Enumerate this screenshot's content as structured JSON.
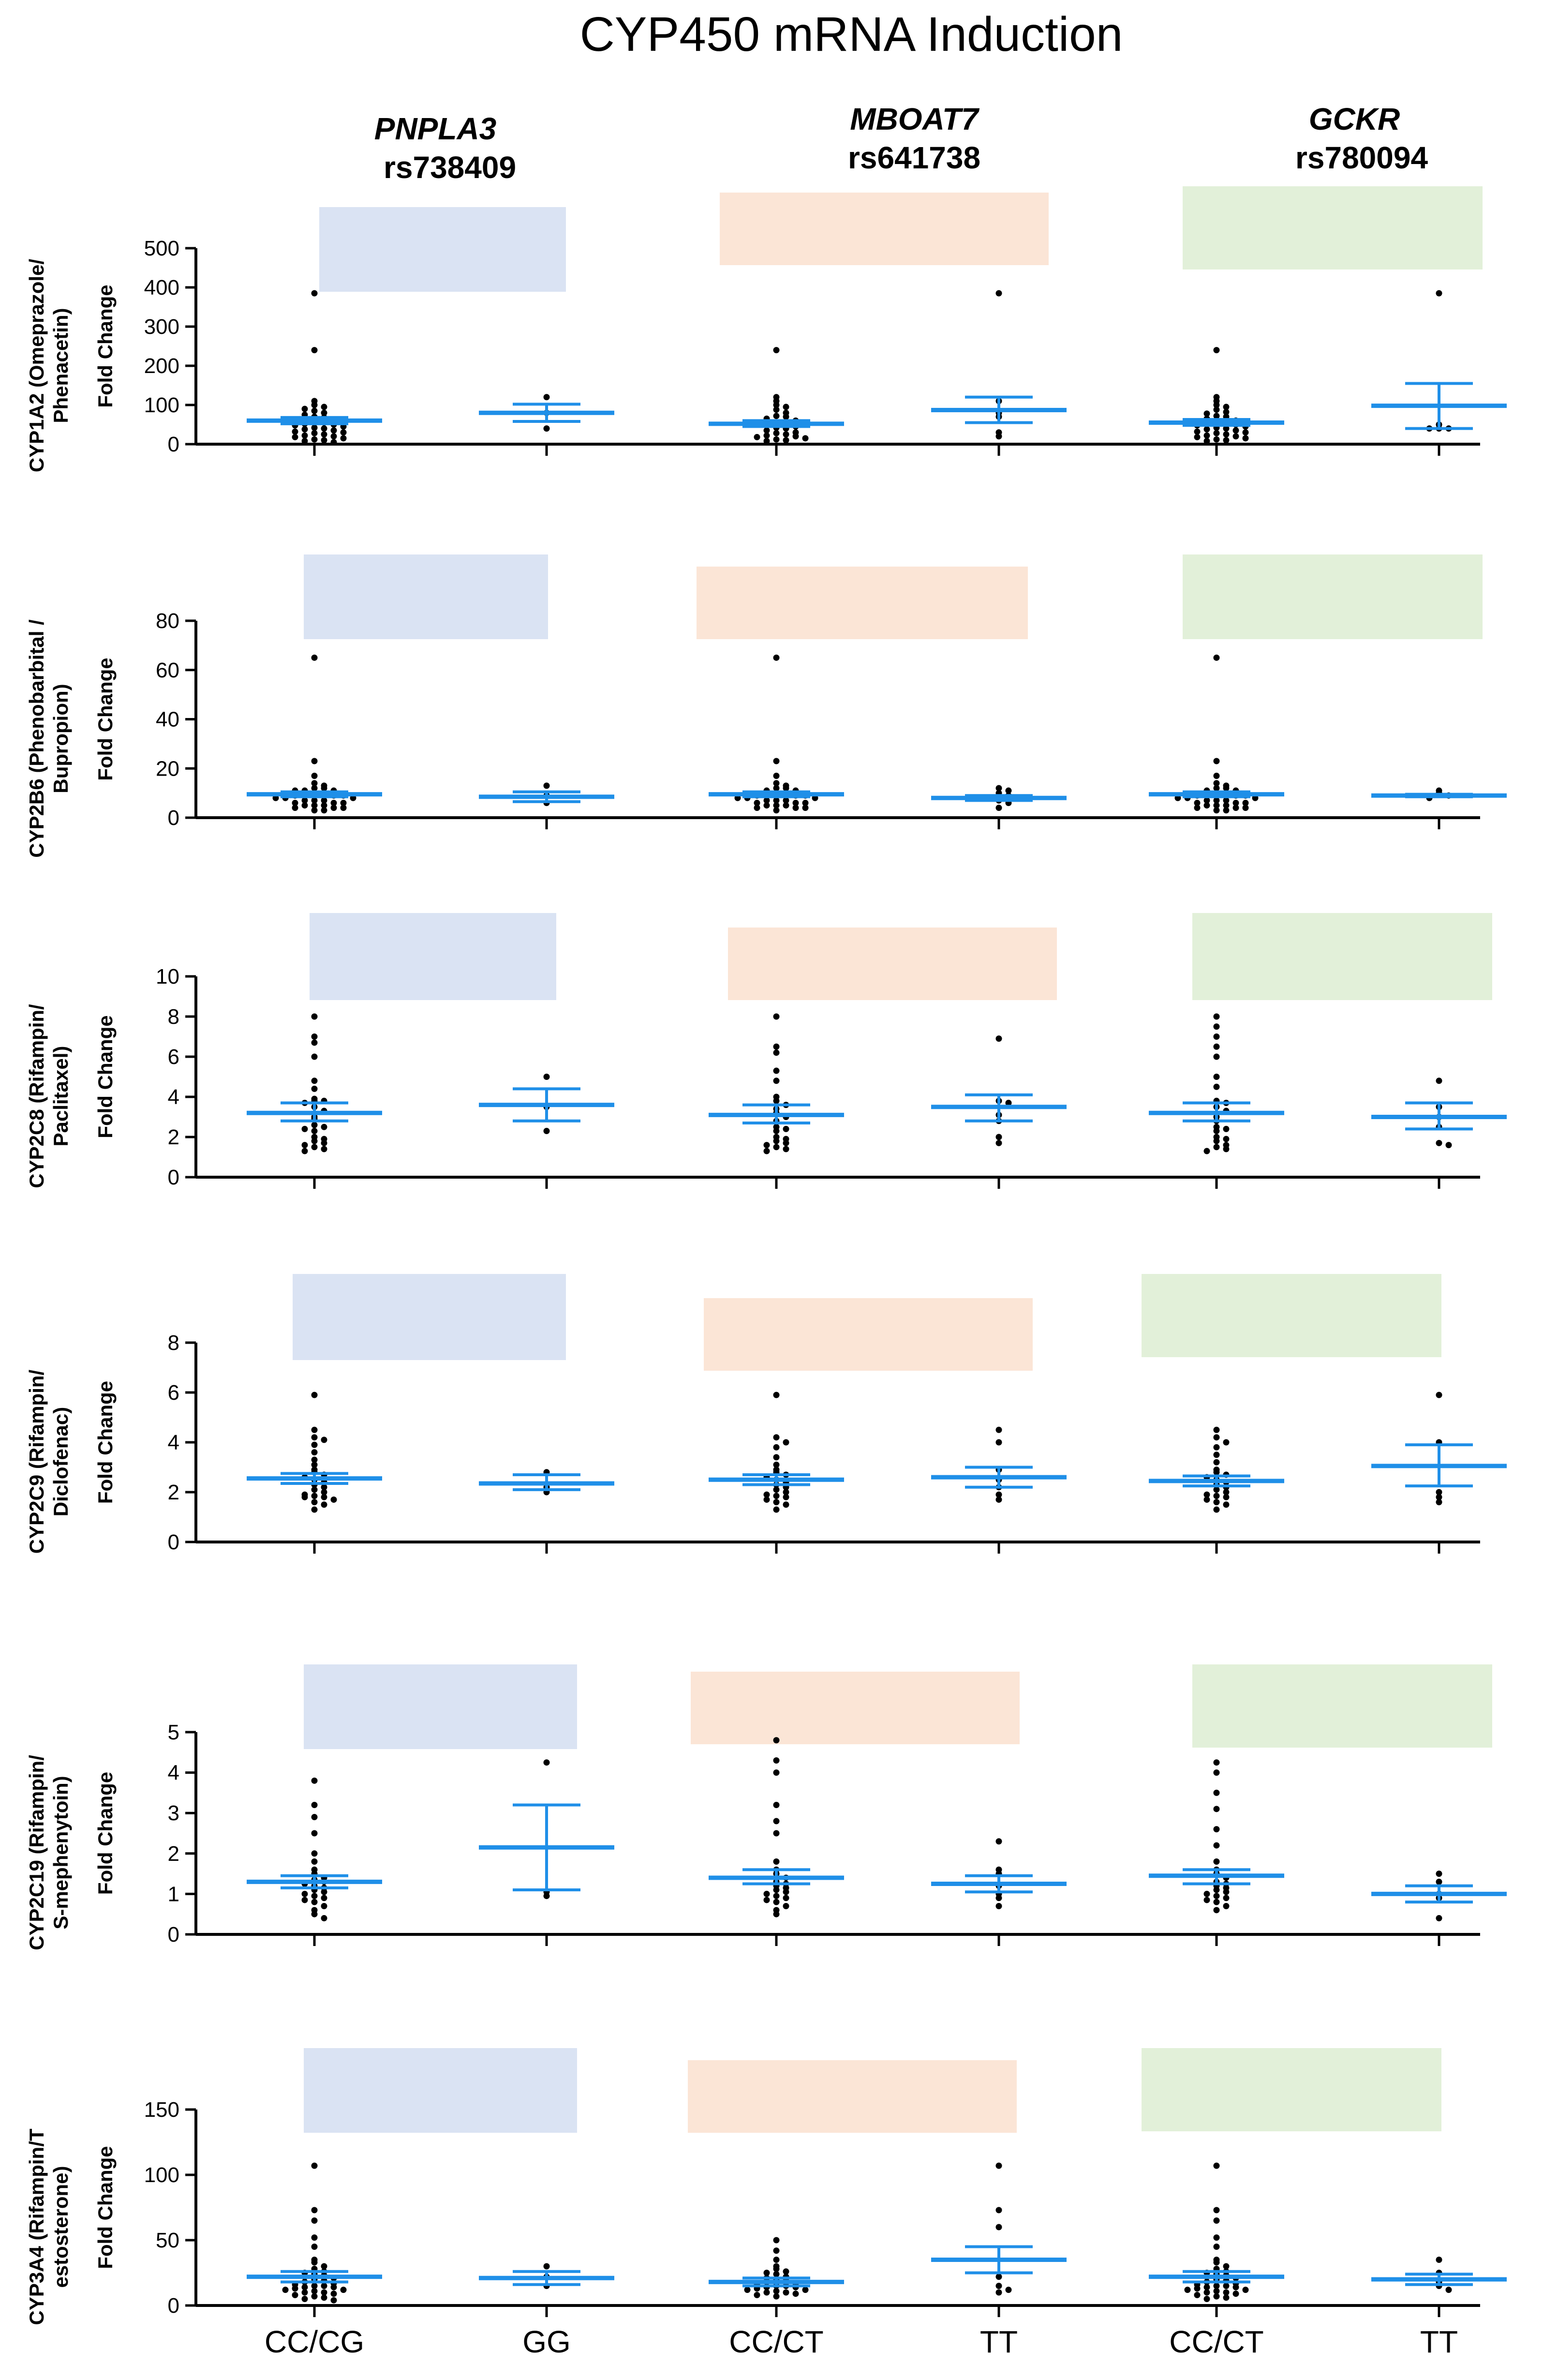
{
  "title": "CYP450 mRNA Induction",
  "genes": [
    {
      "gene": "PNPLA3",
      "snp": "rs738409",
      "color": "#dae3f3"
    },
    {
      "gene": "MBOAT7",
      "snp": "rs641738",
      "color": "#fbe5d6"
    },
    {
      "gene": "GCKR",
      "snp": "rs780094",
      "color": "#e2f0d9"
    }
  ],
  "x_categories": [
    "CC/CG",
    "GG",
    "CC/CT",
    "TT",
    "CC/CT",
    "TT"
  ],
  "ylabel_common": "Fold Change",
  "point_color": "#000000",
  "mean_color": "#1f8fe8",
  "chart_data": [
    {
      "type": "scatter",
      "ylabel_line1": "CYP1A2 (Omeprazole/",
      "ylabel_line2": "Phenacetin)",
      "ylim": [
        0,
        500
      ],
      "yticks": [
        0,
        100,
        200,
        300,
        400,
        500
      ],
      "groups": [
        {
          "category": "CC/CG",
          "mean": 60,
          "sem_low": 52,
          "sem_high": 68,
          "points": [
            385,
            240,
            110,
            100,
            95,
            90,
            85,
            80,
            75,
            70,
            68,
            65,
            60,
            58,
            55,
            52,
            50,
            48,
            45,
            42,
            40,
            38,
            35,
            32,
            30,
            28,
            25,
            22,
            20,
            18,
            15,
            12,
            10,
            8,
            5
          ]
        },
        {
          "category": "GG",
          "mean": 80,
          "sem_low": 58,
          "sem_high": 102,
          "points": [
            120,
            80,
            40
          ]
        },
        {
          "category": "CC/CT",
          "mean": 52,
          "sem_low": 45,
          "sem_high": 60,
          "points": [
            240,
            120,
            110,
            100,
            95,
            88,
            80,
            72,
            70,
            65,
            60,
            55,
            50,
            48,
            45,
            42,
            40,
            35,
            30,
            28,
            25,
            22,
            20,
            18,
            15,
            12,
            10,
            8
          ]
        },
        {
          "category": "TT",
          "mean": 87,
          "sem_low": 55,
          "sem_high": 120,
          "points": [
            385,
            110,
            80,
            70,
            30,
            20
          ]
        },
        {
          "category": "CC/CT",
          "mean": 55,
          "sem_low": 48,
          "sem_high": 63,
          "points": [
            240,
            120,
            110,
            100,
            95,
            88,
            82,
            78,
            72,
            70,
            65,
            60,
            58,
            55,
            52,
            50,
            48,
            45,
            42,
            40,
            38,
            35,
            32,
            30,
            28,
            25,
            22,
            20,
            18,
            15,
            12,
            10,
            8
          ]
        },
        {
          "category": "TT",
          "mean": 98,
          "sem_low": 40,
          "sem_high": 155,
          "points": [
            385,
            50,
            40,
            40,
            40
          ]
        }
      ]
    },
    {
      "type": "scatter",
      "ylabel_line1": "CYP2B6 (Phenobarbital /",
      "ylabel_line2": "Bupropion)",
      "ylim": [
        0,
        80
      ],
      "yticks": [
        0,
        20,
        40,
        60,
        80
      ],
      "groups": [
        {
          "category": "CC/CG",
          "mean": 9.5,
          "sem_low": 8.5,
          "sem_high": 10.5,
          "points": [
            65,
            23,
            17,
            14,
            13,
            12,
            12,
            11,
            11,
            11,
            10,
            10,
            10,
            9,
            9,
            9,
            8,
            8,
            8,
            7,
            7,
            7,
            6,
            6,
            6,
            5,
            5,
            5,
            4,
            4,
            4,
            3,
            3
          ]
        },
        {
          "category": "GG",
          "mean": 8.5,
          "sem_low": 6.5,
          "sem_high": 10.5,
          "points": [
            13,
            9,
            6
          ]
        },
        {
          "category": "CC/CT",
          "mean": 9.5,
          "sem_low": 8.5,
          "sem_high": 10.5,
          "points": [
            65,
            23,
            17,
            14,
            13,
            12,
            12,
            11,
            11,
            10,
            10,
            10,
            9,
            9,
            9,
            8,
            8,
            8,
            7,
            7,
            7,
            6,
            6,
            6,
            5,
            5,
            5,
            4,
            4,
            4,
            3
          ]
        },
        {
          "category": "TT",
          "mean": 8,
          "sem_low": 7,
          "sem_high": 9,
          "points": [
            12,
            11,
            10,
            9,
            8,
            7,
            6,
            4
          ]
        },
        {
          "category": "CC/CT",
          "mean": 9.5,
          "sem_low": 8.5,
          "sem_high": 10.5,
          "points": [
            65,
            23,
            17,
            14,
            13,
            12,
            12,
            11,
            11,
            10,
            10,
            10,
            9,
            9,
            9,
            8,
            8,
            8,
            7,
            7,
            7,
            6,
            6,
            6,
            5,
            5,
            5,
            4,
            4,
            4,
            3,
            3
          ]
        },
        {
          "category": "TT",
          "mean": 9,
          "sem_low": 8.5,
          "sem_high": 9.5,
          "points": [
            11,
            10,
            9,
            8
          ]
        }
      ]
    },
    {
      "type": "scatter",
      "ylabel_line1": "CYP2C8 (Rifampin/",
      "ylabel_line2": "Paclitaxel)",
      "ylim": [
        0,
        10
      ],
      "yticks": [
        0,
        2,
        4,
        6,
        8,
        10
      ],
      "groups": [
        {
          "category": "CC/CG",
          "mean": 3.2,
          "sem_low": 2.8,
          "sem_high": 3.7,
          "points": [
            8.0,
            7.0,
            6.7,
            6.0,
            4.8,
            4.4,
            3.9,
            3.8,
            3.8,
            3.7,
            3.5,
            3.3,
            3.0,
            2.9,
            2.6,
            2.5,
            2.4,
            2.3,
            2.0,
            1.9,
            1.8,
            1.7,
            1.6,
            1.5,
            1.4,
            1.3
          ]
        },
        {
          "category": "GG",
          "mean": 3.6,
          "sem_low": 2.8,
          "sem_high": 4.4,
          "points": [
            5.0,
            3.5,
            2.3
          ]
        },
        {
          "category": "CC/CT",
          "mean": 3.1,
          "sem_low": 2.7,
          "sem_high": 3.6,
          "points": [
            8.0,
            6.5,
            6.2,
            5.3,
            4.8,
            4.0,
            3.8,
            3.6,
            3.4,
            3.2,
            3.0,
            2.8,
            2.5,
            2.4,
            2.3,
            2.0,
            1.9,
            1.8,
            1.7,
            1.6,
            1.5,
            1.4,
            1.3
          ]
        },
        {
          "category": "TT",
          "mean": 3.5,
          "sem_low": 2.8,
          "sem_high": 4.1,
          "points": [
            6.9,
            3.8,
            3.7,
            3.1,
            2.8,
            2.0,
            1.7
          ]
        },
        {
          "category": "CC/CT",
          "mean": 3.2,
          "sem_low": 2.8,
          "sem_high": 3.7,
          "points": [
            8.0,
            7.5,
            7.0,
            6.5,
            6.0,
            5.0,
            4.5,
            3.8,
            3.7,
            3.5,
            3.3,
            3.0,
            2.8,
            2.5,
            2.4,
            2.3,
            2.0,
            1.9,
            1.8,
            1.6,
            1.5,
            1.4,
            1.3
          ]
        },
        {
          "category": "TT",
          "mean": 3.0,
          "sem_low": 2.4,
          "sem_high": 3.7,
          "points": [
            4.8,
            3.5,
            3.0,
            2.5,
            1.7,
            1.6
          ]
        }
      ]
    },
    {
      "type": "scatter",
      "ylabel_line1": "CYP2C9 (Rifampin/",
      "ylabel_line2": "Diclofenac)",
      "ylim": [
        0,
        8
      ],
      "yticks": [
        0,
        2,
        4,
        6,
        8
      ],
      "groups": [
        {
          "category": "CC/CG",
          "mean": 2.55,
          "sem_low": 2.35,
          "sem_high": 2.75,
          "points": [
            5.9,
            4.5,
            4.2,
            4.1,
            3.9,
            3.6,
            3.3,
            3.1,
            2.9,
            2.8,
            2.7,
            2.6,
            2.5,
            2.4,
            2.3,
            2.2,
            2.1,
            2.0,
            1.9,
            1.85,
            1.8,
            1.8,
            1.7,
            1.6,
            1.5,
            1.3
          ]
        },
        {
          "category": "GG",
          "mean": 2.35,
          "sem_low": 2.1,
          "sem_high": 2.7,
          "points": [
            2.8,
            2.2,
            2.0
          ]
        },
        {
          "category": "CC/CT",
          "mean": 2.5,
          "sem_low": 2.3,
          "sem_high": 2.7,
          "points": [
            5.9,
            4.2,
            4.0,
            3.8,
            3.4,
            3.1,
            2.9,
            2.8,
            2.7,
            2.6,
            2.5,
            2.4,
            2.3,
            2.2,
            2.1,
            2.0,
            1.9,
            1.85,
            1.8,
            1.7,
            1.6,
            1.5,
            1.3
          ]
        },
        {
          "category": "TT",
          "mean": 2.6,
          "sem_low": 2.2,
          "sem_high": 3.0,
          "points": [
            4.5,
            4.0,
            2.9,
            2.5,
            2.2,
            1.9,
            1.7
          ]
        },
        {
          "category": "CC/CT",
          "mean": 2.45,
          "sem_low": 2.25,
          "sem_high": 2.65,
          "points": [
            4.5,
            4.2,
            4.0,
            3.8,
            3.5,
            3.2,
            2.9,
            2.8,
            2.7,
            2.6,
            2.5,
            2.4,
            2.3,
            2.2,
            2.1,
            2.0,
            1.9,
            1.85,
            1.8,
            1.7,
            1.6,
            1.5,
            1.3
          ]
        },
        {
          "category": "TT",
          "mean": 3.05,
          "sem_low": 2.25,
          "sem_high": 3.9,
          "points": [
            5.9,
            4.0,
            2.0,
            1.8,
            1.6
          ]
        }
      ]
    },
    {
      "type": "scatter",
      "ylabel_line1": "CYP2C19 (Rifampin/",
      "ylabel_line2": "S-mephenytoin)",
      "ylim": [
        0,
        5
      ],
      "yticks": [
        0,
        1,
        2,
        3,
        4,
        5
      ],
      "groups": [
        {
          "category": "CC/CG",
          "mean": 1.3,
          "sem_low": 1.15,
          "sem_high": 1.45,
          "points": [
            3.8,
            3.2,
            2.9,
            2.5,
            2.0,
            1.8,
            1.6,
            1.5,
            1.4,
            1.35,
            1.3,
            1.25,
            1.2,
            1.15,
            1.1,
            1.05,
            1.0,
            0.95,
            0.9,
            0.85,
            0.8,
            0.7,
            0.6,
            0.5,
            0.4
          ]
        },
        {
          "category": "GG",
          "mean": 2.15,
          "sem_low": 1.1,
          "sem_high": 3.2,
          "points": [
            4.25,
            1.05,
            0.95
          ]
        },
        {
          "category": "CC/CT",
          "mean": 1.4,
          "sem_low": 1.25,
          "sem_high": 1.6,
          "points": [
            4.8,
            4.3,
            4.0,
            3.2,
            2.8,
            2.5,
            1.8,
            1.6,
            1.5,
            1.4,
            1.3,
            1.25,
            1.2,
            1.15,
            1.1,
            1.05,
            1.0,
            0.95,
            0.9,
            0.85,
            0.8,
            0.7,
            0.6,
            0.5
          ]
        },
        {
          "category": "TT",
          "mean": 1.25,
          "sem_low": 1.05,
          "sem_high": 1.45,
          "points": [
            2.3,
            1.6,
            1.5,
            1.2,
            1.0,
            0.9,
            0.7
          ]
        },
        {
          "category": "CC/CT",
          "mean": 1.45,
          "sem_low": 1.25,
          "sem_high": 1.6,
          "points": [
            4.25,
            4.0,
            3.5,
            3.1,
            2.6,
            2.2,
            1.8,
            1.6,
            1.5,
            1.4,
            1.3,
            1.25,
            1.2,
            1.15,
            1.1,
            1.05,
            1.0,
            0.95,
            0.9,
            0.85,
            0.8,
            0.7,
            0.6
          ]
        },
        {
          "category": "TT",
          "mean": 1.0,
          "sem_low": 0.8,
          "sem_high": 1.2,
          "points": [
            1.5,
            1.3,
            1.0,
            0.9,
            0.4
          ]
        }
      ]
    },
    {
      "type": "scatter",
      "ylabel_line1": "CYP3A4 (Rifampin/T",
      "ylabel_line2": "estosterone)",
      "ylim": [
        0,
        150
      ],
      "yticks": [
        0,
        50,
        100,
        150
      ],
      "groups": [
        {
          "category": "CC/CG",
          "mean": 22,
          "sem_low": 18,
          "sem_high": 26,
          "points": [
            107,
            73,
            65,
            52,
            45,
            35,
            33,
            30,
            28,
            26,
            25,
            24,
            23,
            22,
            21,
            20,
            19,
            18,
            17,
            16,
            15,
            15,
            14,
            14,
            13,
            12,
            12,
            11,
            10,
            10,
            9,
            8,
            7,
            6,
            5,
            4
          ]
        },
        {
          "category": "GG",
          "mean": 21,
          "sem_low": 16,
          "sem_high": 26,
          "points": [
            30,
            22,
            15
          ]
        },
        {
          "category": "CC/CT",
          "mean": 18,
          "sem_low": 15,
          "sem_high": 21,
          "points": [
            50,
            42,
            35,
            30,
            28,
            26,
            25,
            24,
            22,
            21,
            20,
            19,
            18,
            17,
            16,
            15,
            15,
            14,
            14,
            13,
            12,
            12,
            11,
            10,
            10,
            9,
            8,
            7
          ]
        },
        {
          "category": "TT",
          "mean": 35,
          "sem_low": 25,
          "sem_high": 45,
          "points": [
            107,
            73,
            60,
            22,
            15,
            12,
            10
          ]
        },
        {
          "category": "CC/CT",
          "mean": 22,
          "sem_low": 18,
          "sem_high": 26,
          "points": [
            107,
            73,
            65,
            52,
            45,
            35,
            33,
            30,
            28,
            26,
            25,
            24,
            23,
            22,
            21,
            20,
            19,
            18,
            17,
            16,
            15,
            15,
            14,
            14,
            13,
            12,
            12,
            11,
            10,
            10,
            9,
            8,
            7,
            6,
            5
          ]
        },
        {
          "category": "TT",
          "mean": 20,
          "sem_low": 16,
          "sem_high": 24,
          "points": [
            35,
            25,
            18,
            15,
            12
          ]
        }
      ]
    }
  ]
}
